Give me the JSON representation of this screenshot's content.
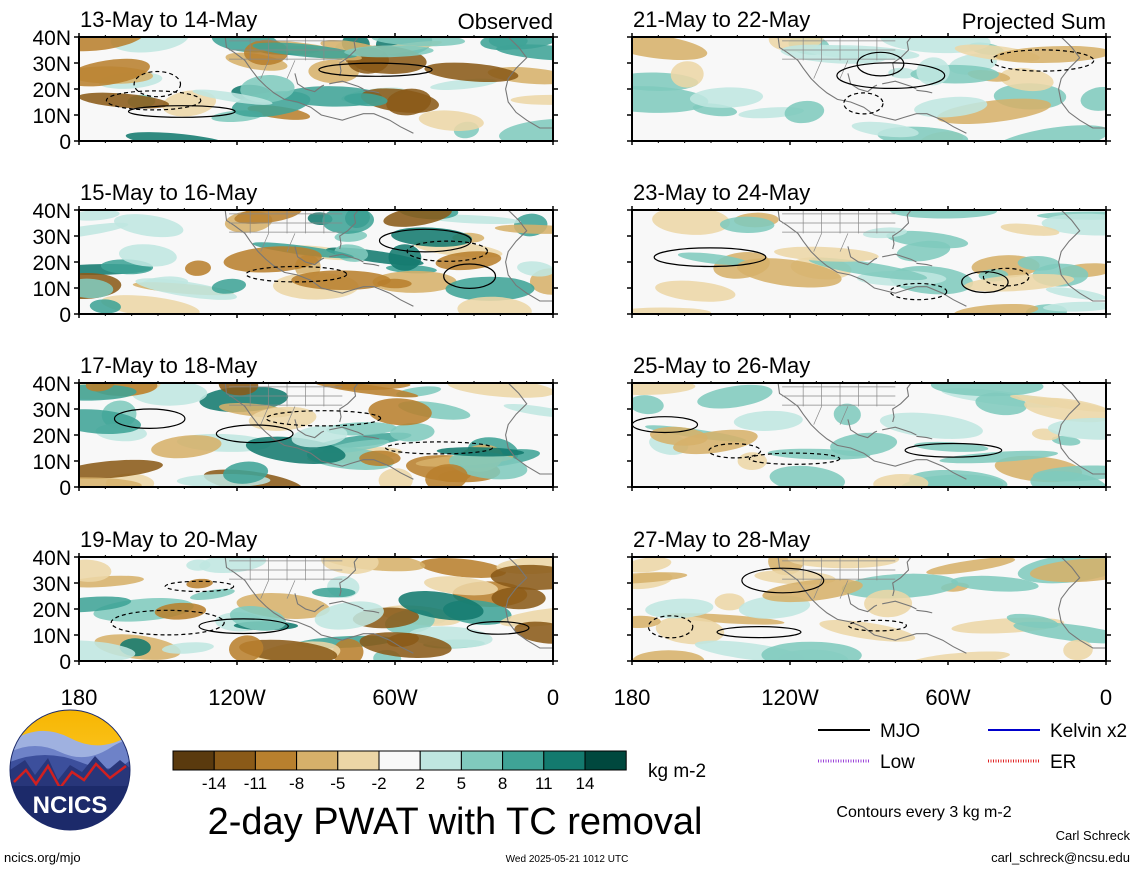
{
  "chart_data": {
    "type": "heatmap",
    "variable": "2-day PWAT with TC removal",
    "units": "kg m-2",
    "xlim": [
      180,
      360
    ],
    "ylim": [
      0,
      40
    ],
    "x_ticks": [
      {
        "value": 180,
        "label": "180"
      },
      {
        "value": 240,
        "label": "120W"
      },
      {
        "value": 300,
        "label": "60W"
      },
      {
        "value": 360,
        "label": "0"
      }
    ],
    "y_ticks": [
      {
        "value": 0,
        "label": "0"
      },
      {
        "value": 10,
        "label": "10N"
      },
      {
        "value": 20,
        "label": "20N"
      },
      {
        "value": 30,
        "label": "30N"
      },
      {
        "value": 40,
        "label": "40N"
      }
    ],
    "panels": [
      {
        "period": "13-May to 14-May",
        "tag": "Observed",
        "column": 0,
        "row": 0
      },
      {
        "period": "15-May to 16-May",
        "tag": "",
        "column": 0,
        "row": 1
      },
      {
        "period": "17-May to 18-May",
        "tag": "",
        "column": 0,
        "row": 2
      },
      {
        "period": "19-May to 20-May",
        "tag": "",
        "column": 0,
        "row": 3
      },
      {
        "period": "21-May to 22-May",
        "tag": "Projected Sum",
        "column": 1,
        "row": 0
      },
      {
        "period": "23-May to 24-May",
        "tag": "",
        "column": 1,
        "row": 1
      },
      {
        "period": "25-May to 26-May",
        "tag": "",
        "column": 1,
        "row": 2
      },
      {
        "period": "27-May to 28-May",
        "tag": "",
        "column": 1,
        "row": 3
      }
    ],
    "colorbar": {
      "labels": [
        "-14",
        "-11",
        "-8",
        "-5",
        "-2",
        "2",
        "5",
        "8",
        "11",
        "14"
      ],
      "colors": [
        "#5a3a0e",
        "#8a5a18",
        "#b8802e",
        "#d6b06a",
        "#ecd6a6",
        "#f8f8f8",
        "#bfe6e0",
        "#80cabd",
        "#3fa396",
        "#137a6e",
        "#00483e"
      ],
      "units": "kg m-2"
    },
    "legend": [
      {
        "label": "MJO",
        "color": "#000000",
        "style": "solid"
      },
      {
        "label": "Kelvin x2",
        "color": "#0000cc",
        "style": "solid"
      },
      {
        "label": "Low",
        "color": "#9a40d8",
        "style": "dotted"
      },
      {
        "label": "ER",
        "color": "#e02020",
        "style": "dotted"
      }
    ],
    "contour_note": "Contours every 3 kg m-2"
  },
  "title": "2-day PWAT with TC removal",
  "logo_text": "NCICS",
  "footer": {
    "url": "ncics.org/mjo",
    "timestamp": "Wed 2025-05-21 1012 UTC",
    "author": "Carl Schreck",
    "email": "carl_schreck@ncsu.edu"
  }
}
